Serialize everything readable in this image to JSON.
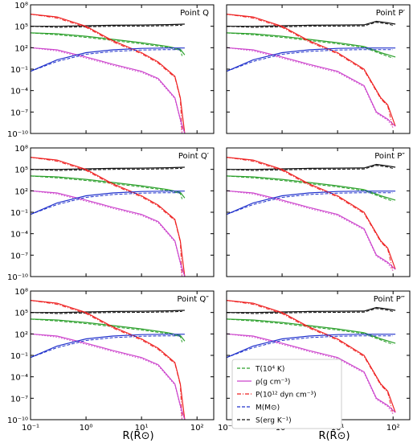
{
  "figure": {
    "xlabel": "R(R⊙)",
    "legend": [
      {
        "label": "T(10⁴ K)",
        "color": "#2ca02c"
      },
      {
        "label": "ρ(g cm⁻³)",
        "color": "#cc44cc"
      },
      {
        "label": "P(10¹² dyn cm⁻³)",
        "color": "#ee2222"
      },
      {
        "label": "M(M⊙)",
        "color": "#2233cc"
      },
      {
        "label": "S(erg K⁻¹)",
        "color": "#111111"
      }
    ]
  },
  "chart_data": [
    {
      "type": "line",
      "title": "Point Q",
      "xscale": "log",
      "yscale": "log",
      "xlim": [
        0.1,
        200
      ],
      "ylim": [
        1e-10,
        100000000.0
      ],
      "xticks": [
        "10⁻¹",
        "10⁰",
        "10¹",
        "10²"
      ],
      "yticks": [
        "10⁻¹⁰",
        "10⁻⁷",
        "10⁻⁴",
        "10⁻¹",
        "10²",
        "10⁵",
        "10⁸"
      ],
      "radius": 60,
      "series": [
        {
          "quantity": "S",
          "x": [
            0.1,
            0.3,
            1,
            3,
            10,
            30,
            60
          ],
          "y": [
            100000,
            100000,
            120000,
            140000,
            150000,
            170000,
            200000
          ]
        },
        {
          "quantity": "T",
          "x": [
            0.1,
            0.3,
            1,
            3,
            10,
            30,
            50,
            60
          ],
          "y": [
            12000,
            9000,
            4000,
            1500,
            500,
            150,
            60,
            10
          ]
        },
        {
          "quantity": "P",
          "x": [
            0.1,
            0.3,
            1,
            3,
            10,
            20,
            40,
            50,
            60
          ],
          "y": [
            5000000,
            2000000,
            100000,
            1000,
            20,
            1,
            0.01,
            1e-05,
            1e-10
          ]
        },
        {
          "quantity": "rho",
          "x": [
            0.1,
            0.3,
            1,
            3,
            10,
            20,
            40,
            50,
            60
          ],
          "y": [
            100,
            50,
            5,
            0.5,
            0.05,
            0.005,
            1e-05,
            1e-08,
            1e-10
          ]
        },
        {
          "quantity": "M",
          "x": [
            0.1,
            0.3,
            1,
            3,
            10,
            30,
            60
          ],
          "y": [
            0.05,
            2,
            20,
            50,
            80,
            90,
            90
          ]
        }
      ]
    },
    {
      "type": "line",
      "title": "Point P′",
      "xscale": "log",
      "yscale": "log",
      "xlim": [
        0.1,
        200
      ],
      "ylim": [
        1e-10,
        100000000.0
      ],
      "xticks": [
        "10⁻¹",
        "10⁰",
        "10¹",
        "10²"
      ],
      "yticks": [
        "10⁻¹⁰",
        "10⁻⁷",
        "10⁻⁴",
        "10⁻¹",
        "10²",
        "10⁵",
        "10⁸"
      ],
      "radius": 110,
      "series": [
        {
          "quantity": "S",
          "x": [
            0.1,
            0.3,
            1,
            3,
            10,
            30,
            50,
            80,
            110
          ],
          "y": [
            100000,
            100000,
            120000,
            140000,
            150000,
            160000,
            500000,
            300000,
            200000
          ]
        },
        {
          "quantity": "T",
          "x": [
            0.1,
            0.3,
            1,
            3,
            10,
            30,
            60,
            110
          ],
          "y": [
            12000,
            9000,
            4000,
            1500,
            500,
            150,
            20,
            5
          ]
        },
        {
          "quantity": "P",
          "x": [
            0.1,
            0.3,
            1,
            3,
            10,
            30,
            60,
            80,
            110
          ],
          "y": [
            5000000,
            2000000,
            100000,
            1000,
            20,
            0.1,
            1e-05,
            1e-06,
            1e-09
          ]
        },
        {
          "quantity": "rho",
          "x": [
            0.1,
            0.3,
            1,
            3,
            10,
            30,
            50,
            80,
            110
          ],
          "y": [
            100,
            50,
            5,
            0.5,
            0.05,
            0.0005,
            1e-07,
            1e-08,
            1e-09
          ]
        },
        {
          "quantity": "M",
          "x": [
            0.1,
            0.3,
            1,
            3,
            10,
            30,
            110
          ],
          "y": [
            0.05,
            2,
            20,
            50,
            80,
            90,
            90
          ]
        }
      ]
    },
    {
      "type": "line",
      "title": "Point Q′",
      "xscale": "log",
      "yscale": "log",
      "xlim": [
        0.1,
        200
      ],
      "ylim": [
        1e-10,
        100000000.0
      ],
      "xticks": [
        "10⁻¹",
        "10⁰",
        "10¹",
        "10²"
      ],
      "yticks": [
        "10⁻¹⁰",
        "10⁻⁷",
        "10⁻⁴",
        "10⁻¹",
        "10²",
        "10⁵",
        "10⁸"
      ],
      "radius": 60,
      "series": [
        {
          "quantity": "S",
          "x": [
            0.1,
            0.3,
            1,
            3,
            10,
            30,
            60
          ],
          "y": [
            100000,
            100000,
            120000,
            140000,
            150000,
            170000,
            200000
          ]
        },
        {
          "quantity": "T",
          "x": [
            0.1,
            0.3,
            1,
            3,
            10,
            30,
            50,
            60
          ],
          "y": [
            12000,
            9000,
            4000,
            1500,
            500,
            150,
            60,
            10
          ]
        },
        {
          "quantity": "P",
          "x": [
            0.1,
            0.3,
            1,
            3,
            10,
            20,
            40,
            50,
            60
          ],
          "y": [
            5000000,
            2000000,
            100000,
            1000,
            20,
            1,
            0.01,
            1e-05,
            1e-10
          ]
        },
        {
          "quantity": "rho",
          "x": [
            0.1,
            0.3,
            1,
            3,
            10,
            20,
            40,
            50,
            60
          ],
          "y": [
            100,
            50,
            5,
            0.5,
            0.05,
            0.005,
            1e-05,
            1e-08,
            1e-10
          ]
        },
        {
          "quantity": "M",
          "x": [
            0.1,
            0.3,
            1,
            3,
            10,
            30,
            60
          ],
          "y": [
            0.05,
            2,
            20,
            50,
            80,
            90,
            90
          ]
        }
      ]
    },
    {
      "type": "line",
      "title": "Point P″",
      "xscale": "log",
      "yscale": "log",
      "xlim": [
        0.1,
        200
      ],
      "ylim": [
        1e-10,
        100000000.0
      ],
      "xticks": [
        "10⁻¹",
        "10⁰",
        "10¹",
        "10²"
      ],
      "yticks": [
        "10⁻¹⁰",
        "10⁻⁷",
        "10⁻⁴",
        "10⁻¹",
        "10²",
        "10⁵",
        "10⁸"
      ],
      "radius": 110,
      "series": [
        {
          "quantity": "S",
          "x": [
            0.1,
            0.3,
            1,
            3,
            10,
            30,
            50,
            80,
            110
          ],
          "y": [
            100000,
            100000,
            120000,
            140000,
            150000,
            160000,
            500000,
            300000,
            200000
          ]
        },
        {
          "quantity": "T",
          "x": [
            0.1,
            0.3,
            1,
            3,
            10,
            30,
            60,
            110
          ],
          "y": [
            12000,
            9000,
            4000,
            1500,
            500,
            150,
            20,
            5
          ]
        },
        {
          "quantity": "P",
          "x": [
            0.1,
            0.3,
            1,
            3,
            10,
            30,
            60,
            80,
            110
          ],
          "y": [
            5000000,
            2000000,
            100000,
            1000,
            20,
            0.1,
            1e-05,
            1e-06,
            1e-09
          ]
        },
        {
          "quantity": "rho",
          "x": [
            0.1,
            0.3,
            1,
            3,
            10,
            30,
            50,
            80,
            110
          ],
          "y": [
            100,
            50,
            5,
            0.5,
            0.05,
            0.0005,
            1e-07,
            1e-08,
            1e-09
          ]
        },
        {
          "quantity": "M",
          "x": [
            0.1,
            0.3,
            1,
            3,
            10,
            30,
            110
          ],
          "y": [
            0.05,
            2,
            20,
            50,
            80,
            90,
            90
          ]
        }
      ]
    },
    {
      "type": "line",
      "title": "Point Q″",
      "xscale": "log",
      "yscale": "log",
      "xlim": [
        0.1,
        200
      ],
      "ylim": [
        1e-10,
        100000000.0
      ],
      "xticks": [
        "10⁻¹",
        "10⁰",
        "10¹",
        "10²"
      ],
      "yticks": [
        "10⁻¹⁰",
        "10⁻⁷",
        "10⁻⁴",
        "10⁻¹",
        "10²",
        "10⁵",
        "10⁸"
      ],
      "radius": 60,
      "series": [
        {
          "quantity": "S",
          "x": [
            0.1,
            0.3,
            1,
            3,
            10,
            30,
            60
          ],
          "y": [
            100000,
            100000,
            120000,
            140000,
            150000,
            170000,
            200000
          ]
        },
        {
          "quantity": "T",
          "x": [
            0.1,
            0.3,
            1,
            3,
            10,
            30,
            50,
            60
          ],
          "y": [
            12000,
            9000,
            4000,
            1500,
            500,
            150,
            60,
            10
          ]
        },
        {
          "quantity": "P",
          "x": [
            0.1,
            0.3,
            1,
            3,
            10,
            20,
            40,
            50,
            60
          ],
          "y": [
            5000000,
            2000000,
            100000,
            1000,
            20,
            1,
            0.01,
            1e-05,
            1e-10
          ]
        },
        {
          "quantity": "rho",
          "x": [
            0.1,
            0.3,
            1,
            3,
            10,
            20,
            40,
            50,
            60
          ],
          "y": [
            100,
            50,
            5,
            0.5,
            0.05,
            0.005,
            1e-05,
            1e-08,
            1e-10
          ]
        },
        {
          "quantity": "M",
          "x": [
            0.1,
            0.3,
            1,
            3,
            10,
            30,
            60
          ],
          "y": [
            0.05,
            2,
            20,
            50,
            80,
            90,
            90
          ]
        }
      ]
    },
    {
      "type": "line",
      "title": "Point P‴",
      "xscale": "log",
      "yscale": "log",
      "xlim": [
        0.1,
        200
      ],
      "ylim": [
        1e-10,
        100000000.0
      ],
      "xticks": [
        "10⁻¹",
        "10⁰",
        "10¹",
        "10²"
      ],
      "yticks": [
        "10⁻¹⁰",
        "10⁻⁷",
        "10⁻⁴",
        "10⁻¹",
        "10²",
        "10⁵",
        "10⁸"
      ],
      "radius": 110,
      "series": [
        {
          "quantity": "S",
          "x": [
            0.1,
            0.3,
            1,
            3,
            10,
            30,
            50,
            80,
            110
          ],
          "y": [
            100000,
            100000,
            120000,
            140000,
            150000,
            160000,
            500000,
            300000,
            200000
          ]
        },
        {
          "quantity": "T",
          "x": [
            0.1,
            0.3,
            1,
            3,
            10,
            30,
            60,
            110
          ],
          "y": [
            12000,
            9000,
            4000,
            1500,
            500,
            150,
            20,
            5
          ]
        },
        {
          "quantity": "P",
          "x": [
            0.1,
            0.3,
            1,
            3,
            10,
            30,
            60,
            80,
            110
          ],
          "y": [
            5000000,
            2000000,
            100000,
            1000,
            20,
            0.1,
            1e-05,
            1e-06,
            1e-09
          ]
        },
        {
          "quantity": "rho",
          "x": [
            0.1,
            0.3,
            1,
            3,
            10,
            30,
            50,
            80,
            110
          ],
          "y": [
            100,
            50,
            5,
            0.5,
            0.05,
            0.0005,
            1e-07,
            1e-08,
            1e-09
          ]
        },
        {
          "quantity": "M",
          "x": [
            0.1,
            0.3,
            1,
            3,
            10,
            30,
            110
          ],
          "y": [
            0.05,
            2,
            20,
            50,
            80,
            90,
            90
          ]
        }
      ]
    }
  ]
}
